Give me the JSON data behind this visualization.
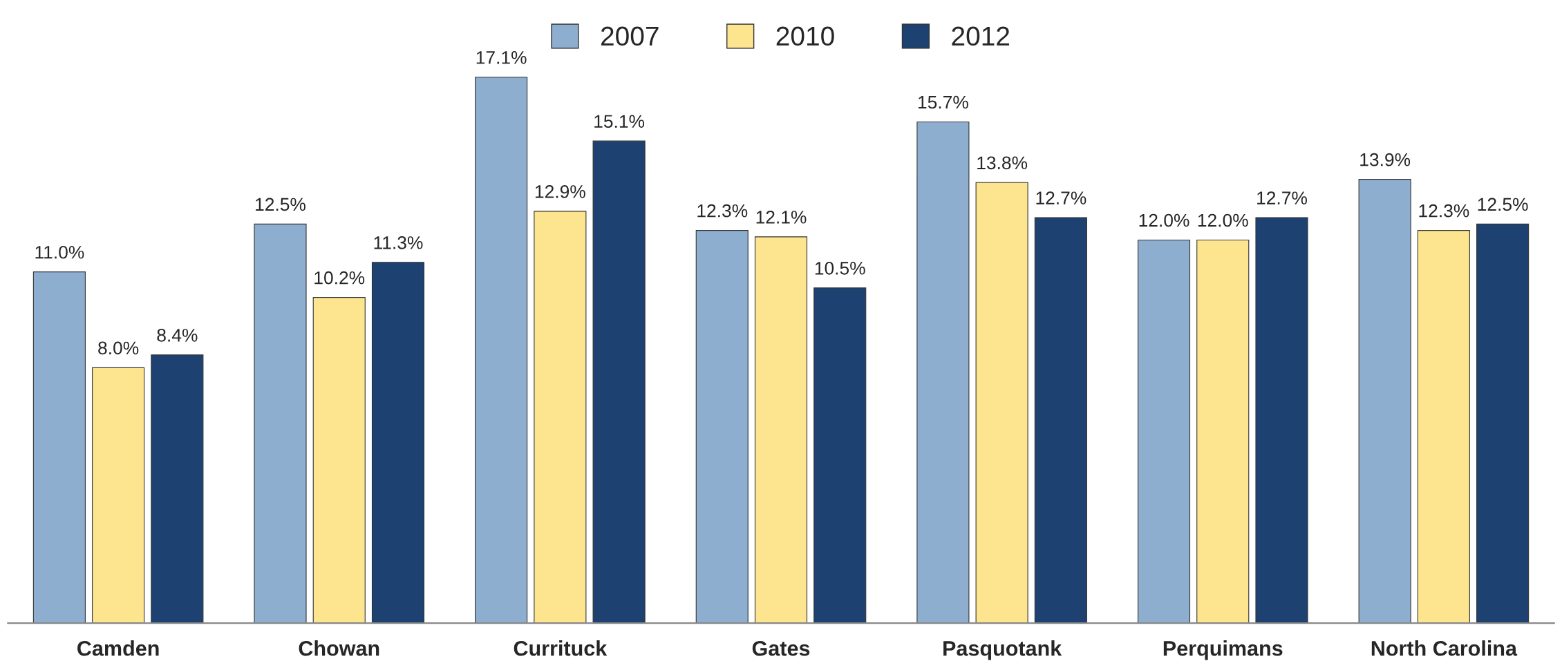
{
  "chart_data": {
    "type": "bar",
    "categories": [
      "Camden",
      "Chowan",
      "Currituck",
      "Gates",
      "Pasquotank",
      "Perquimans",
      "North Carolina"
    ],
    "series": [
      {
        "name": "2007",
        "color": "#8eaed0",
        "values": [
          11.0,
          12.5,
          17.1,
          12.3,
          15.7,
          12.0,
          13.9
        ],
        "value_labels": [
          "11.0%",
          "12.5%",
          "17.1%",
          "12.3%",
          "15.7%",
          "12.0%",
          "13.9%"
        ]
      },
      {
        "name": "2010",
        "color": "#fde48e",
        "values": [
          8.0,
          10.2,
          12.9,
          12.1,
          13.8,
          12.0,
          12.3
        ],
        "value_labels": [
          "8.0%",
          "10.2%",
          "12.9%",
          "12.1%",
          "13.8%",
          "12.0%",
          "12.3%"
        ]
      },
      {
        "name": "2012",
        "color": "#1d4272",
        "values": [
          8.4,
          11.3,
          15.1,
          10.5,
          12.7,
          12.7,
          12.5
        ],
        "value_labels": [
          "8.4%",
          "11.3%",
          "15.1%",
          "10.5%",
          "12.7%",
          "12.7%",
          "12.5%"
        ]
      }
    ],
    "legend": "top",
    "grid": false,
    "tick_labels": "x"
  }
}
